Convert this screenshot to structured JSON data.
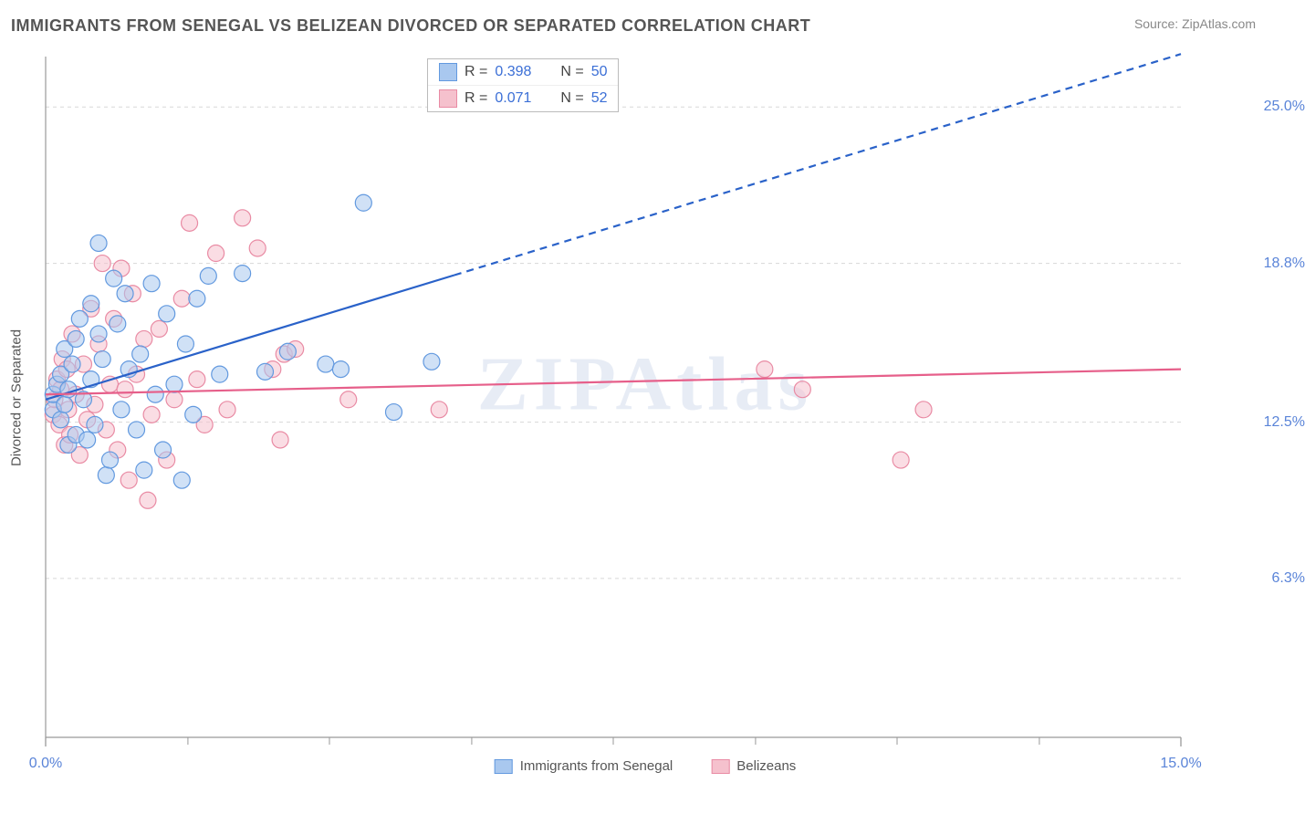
{
  "header": {
    "title": "IMMIGRANTS FROM SENEGAL VS BELIZEAN DIVORCED OR SEPARATED CORRELATION CHART",
    "source_label": "Source:",
    "source_name": "ZipAtlas.com"
  },
  "watermark": "ZIPAtlas",
  "chart": {
    "type": "scatter",
    "ylabel": "Divorced or Separated",
    "xlim": [
      0,
      15
    ],
    "ylim": [
      0,
      27
    ],
    "xtick_labels": [
      "0.0%",
      "15.0%"
    ],
    "xtick_positions": [
      0,
      15
    ],
    "minor_xticks": [
      1.88,
      3.75,
      5.63,
      7.5,
      9.38,
      11.25,
      13.13
    ],
    "ytick_labels": [
      "6.3%",
      "12.5%",
      "18.8%",
      "25.0%"
    ],
    "ytick_positions": [
      6.3,
      12.5,
      18.8,
      25.0
    ],
    "grid_color": "#d8d8d8",
    "axis_color": "#999999",
    "background_color": "#ffffff",
    "marker_radius": 9,
    "marker_opacity": 0.55,
    "line_width": 2.2,
    "series": [
      {
        "name": "Immigrants from Senegal",
        "color_fill": "#a9c8ef",
        "color_stroke": "#6299df",
        "line_color": "#2a62c9",
        "R": "0.398",
        "N": "50",
        "trend": {
          "x0": 0,
          "y0": 13.4,
          "x1": 5.4,
          "y1": 18.3,
          "x2": 15,
          "y2": 27.1,
          "solid_until": 5.4
        },
        "points": [
          [
            0.1,
            13.0
          ],
          [
            0.1,
            13.6
          ],
          [
            0.15,
            14.0
          ],
          [
            0.2,
            12.6
          ],
          [
            0.2,
            14.4
          ],
          [
            0.25,
            13.2
          ],
          [
            0.25,
            15.4
          ],
          [
            0.3,
            11.6
          ],
          [
            0.3,
            13.8
          ],
          [
            0.35,
            14.8
          ],
          [
            0.4,
            12.0
          ],
          [
            0.4,
            15.8
          ],
          [
            0.45,
            16.6
          ],
          [
            0.5,
            13.4
          ],
          [
            0.55,
            11.8
          ],
          [
            0.6,
            17.2
          ],
          [
            0.6,
            14.2
          ],
          [
            0.65,
            12.4
          ],
          [
            0.7,
            16.0
          ],
          [
            0.7,
            19.6
          ],
          [
            0.75,
            15.0
          ],
          [
            0.8,
            10.4
          ],
          [
            0.85,
            11.0
          ],
          [
            0.9,
            18.2
          ],
          [
            0.95,
            16.4
          ],
          [
            1.0,
            13.0
          ],
          [
            1.05,
            17.6
          ],
          [
            1.1,
            14.6
          ],
          [
            1.2,
            12.2
          ],
          [
            1.25,
            15.2
          ],
          [
            1.3,
            10.6
          ],
          [
            1.4,
            18.0
          ],
          [
            1.45,
            13.6
          ],
          [
            1.55,
            11.4
          ],
          [
            1.6,
            16.8
          ],
          [
            1.7,
            14.0
          ],
          [
            1.8,
            10.2
          ],
          [
            1.85,
            15.6
          ],
          [
            1.95,
            12.8
          ],
          [
            2.0,
            17.4
          ],
          [
            2.15,
            18.3
          ],
          [
            2.3,
            14.4
          ],
          [
            2.6,
            18.4
          ],
          [
            2.9,
            14.5
          ],
          [
            3.2,
            15.3
          ],
          [
            3.7,
            14.8
          ],
          [
            3.9,
            14.6
          ],
          [
            4.6,
            12.9
          ],
          [
            4.2,
            21.2
          ],
          [
            5.1,
            14.9
          ]
        ]
      },
      {
        "name": "Belizeans",
        "color_fill": "#f5c1cd",
        "color_stroke": "#e98ba4",
        "line_color": "#e65f8a",
        "R": "0.071",
        "N": "52",
        "trend": {
          "x0": 0,
          "y0": 13.6,
          "x1": 15,
          "y1": 14.6,
          "x2": 15,
          "y2": 14.6,
          "solid_until": 15
        },
        "points": [
          [
            0.1,
            12.8
          ],
          [
            0.12,
            13.4
          ],
          [
            0.15,
            14.2
          ],
          [
            0.18,
            12.4
          ],
          [
            0.2,
            13.8
          ],
          [
            0.22,
            15.0
          ],
          [
            0.25,
            11.6
          ],
          [
            0.28,
            14.6
          ],
          [
            0.3,
            13.0
          ],
          [
            0.32,
            12.0
          ],
          [
            0.35,
            16.0
          ],
          [
            0.4,
            13.6
          ],
          [
            0.45,
            11.2
          ],
          [
            0.5,
            14.8
          ],
          [
            0.55,
            12.6
          ],
          [
            0.6,
            17.0
          ],
          [
            0.65,
            13.2
          ],
          [
            0.7,
            15.6
          ],
          [
            0.75,
            18.8
          ],
          [
            0.8,
            12.2
          ],
          [
            0.85,
            14.0
          ],
          [
            0.9,
            16.6
          ],
          [
            0.95,
            11.4
          ],
          [
            1.0,
            18.6
          ],
          [
            1.05,
            13.8
          ],
          [
            1.1,
            10.2
          ],
          [
            1.15,
            17.6
          ],
          [
            1.2,
            14.4
          ],
          [
            1.3,
            15.8
          ],
          [
            1.35,
            9.4
          ],
          [
            1.4,
            12.8
          ],
          [
            1.5,
            16.2
          ],
          [
            1.6,
            11.0
          ],
          [
            1.7,
            13.4
          ],
          [
            1.8,
            17.4
          ],
          [
            1.9,
            20.4
          ],
          [
            2.0,
            14.2
          ],
          [
            2.1,
            12.4
          ],
          [
            2.25,
            19.2
          ],
          [
            2.4,
            13.0
          ],
          [
            2.6,
            20.6
          ],
          [
            2.8,
            19.4
          ],
          [
            3.0,
            14.6
          ],
          [
            3.1,
            11.8
          ],
          [
            3.15,
            15.2
          ],
          [
            3.3,
            15.4
          ],
          [
            4.0,
            13.4
          ],
          [
            5.2,
            13.0
          ],
          [
            9.5,
            14.6
          ],
          [
            10.0,
            13.8
          ],
          [
            11.3,
            11.0
          ],
          [
            11.6,
            13.0
          ]
        ]
      }
    ]
  }
}
